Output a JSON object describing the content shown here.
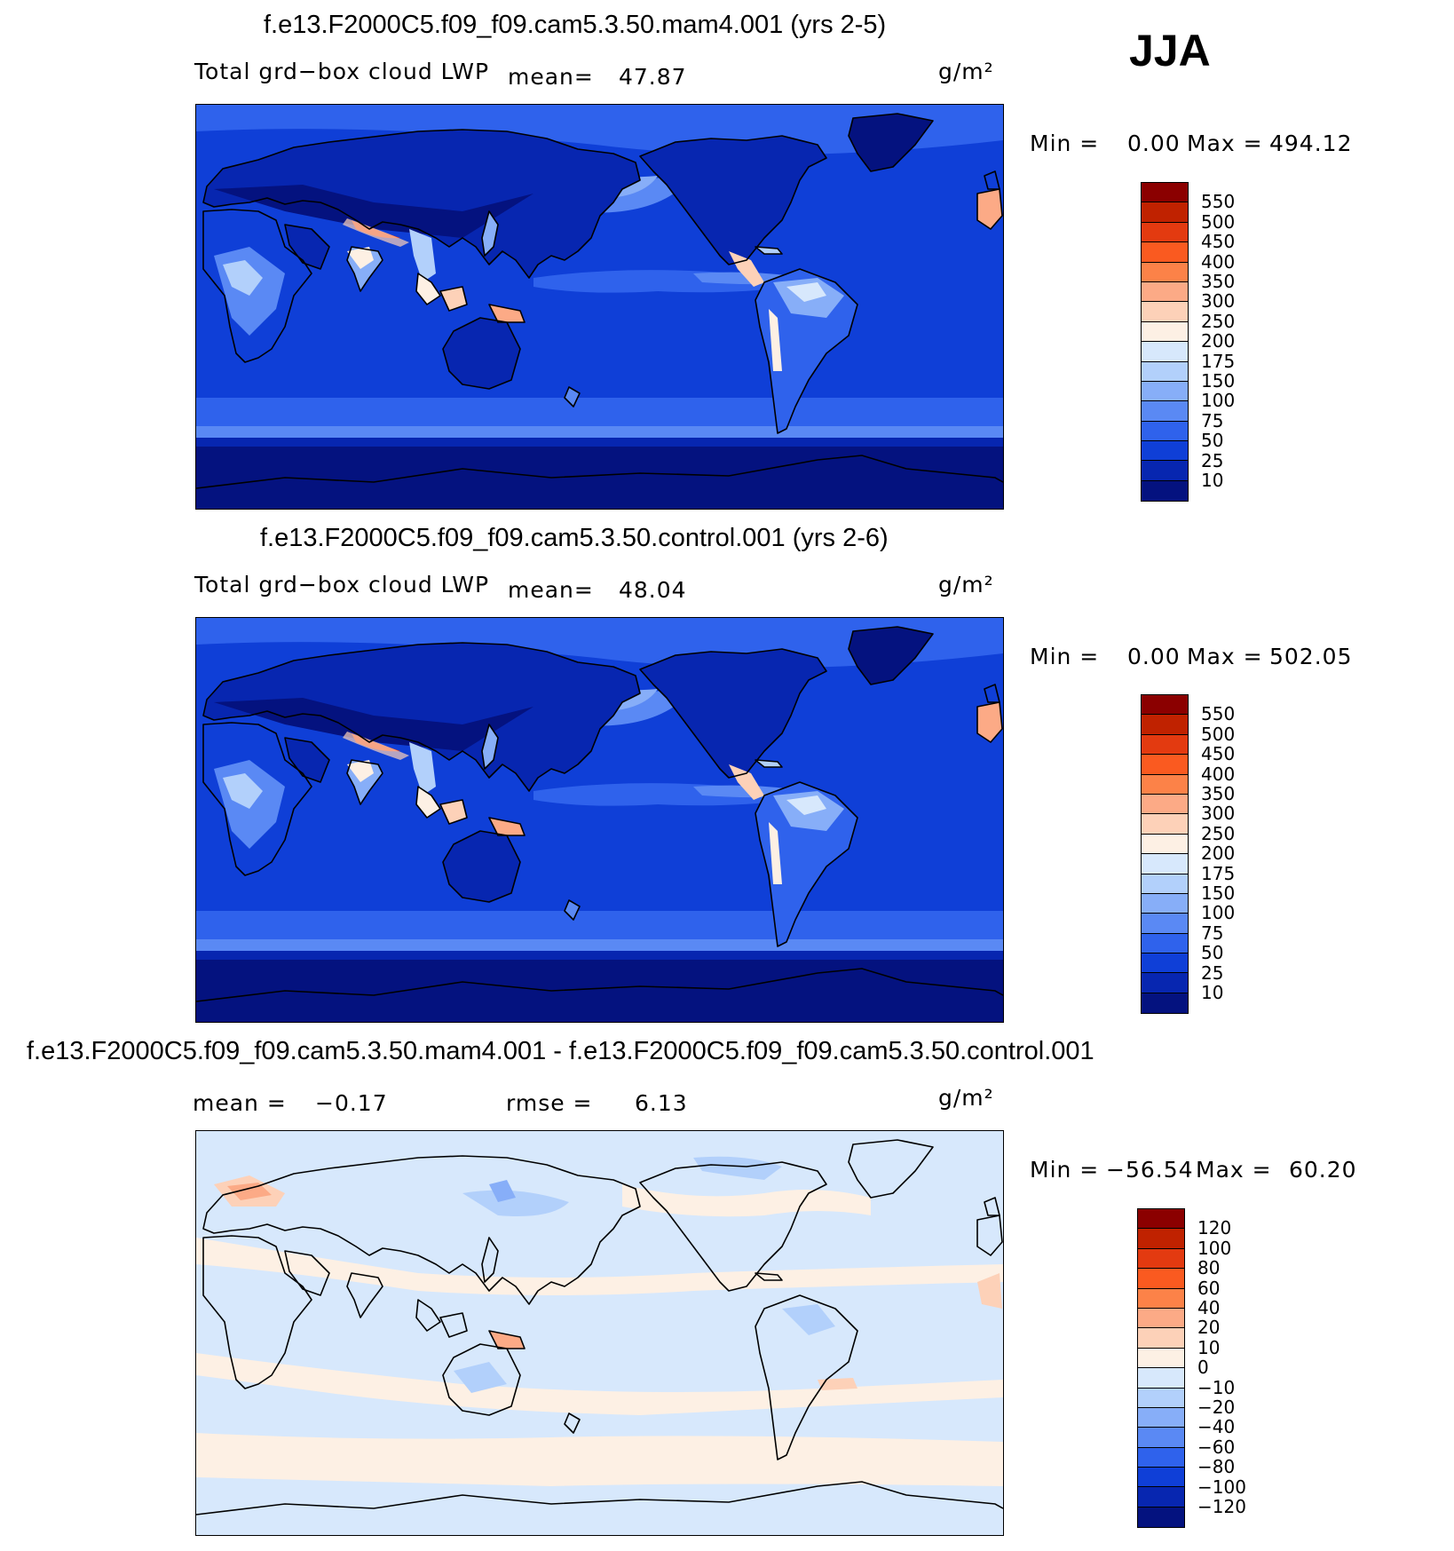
{
  "season": "JJA",
  "panels": [
    {
      "id": "p1",
      "title": "f.e13.F2000C5.f09_f09.cam5.3.50.mam4.001 (yrs 2-5)",
      "var_label": "Total grd−box cloud LWP",
      "mean_label": "mean=",
      "mean_value": "47.87",
      "units": "g/m²",
      "min_label": "Min =",
      "min_value": "0.00",
      "max_label": "Max =",
      "max_value": "494.12",
      "colorbar_labels": [
        "550",
        "500",
        "450",
        "400",
        "350",
        "300",
        "250",
        "200",
        "175",
        "150",
        "100",
        "75",
        "50",
        "25",
        "10"
      ],
      "colorbar_colors": [
        "#8b0000",
        "#c02200",
        "#e33a10",
        "#fa5a20",
        "#fc8248",
        "#fcaa86",
        "#fdd1b8",
        "#fdf0e4",
        "#d7e8fc",
        "#b2d0fb",
        "#87aef8",
        "#5a89f4",
        "#2f62ec",
        "#0f3fd7",
        "#0726b0",
        "#04127f"
      ],
      "field": "lwp"
    },
    {
      "id": "p2",
      "title": "f.e13.F2000C5.f09_f09.cam5.3.50.control.001 (yrs 2-6)",
      "var_label": "Total grd−box cloud LWP",
      "mean_label": "mean=",
      "mean_value": "48.04",
      "units": "g/m²",
      "min_label": "Min =",
      "min_value": "0.00",
      "max_label": "Max =",
      "max_value": "502.05",
      "colorbar_labels": [
        "550",
        "500",
        "450",
        "400",
        "350",
        "300",
        "250",
        "200",
        "175",
        "150",
        "100",
        "75",
        "50",
        "25",
        "10"
      ],
      "colorbar_colors": [
        "#8b0000",
        "#c02200",
        "#e33a10",
        "#fa5a20",
        "#fc8248",
        "#fcaa86",
        "#fdd1b8",
        "#fdf0e4",
        "#d7e8fc",
        "#b2d0fb",
        "#87aef8",
        "#5a89f4",
        "#2f62ec",
        "#0f3fd7",
        "#0726b0",
        "#04127f"
      ],
      "field": "lwp"
    },
    {
      "id": "p3",
      "title": "f.e13.F2000C5.f09_f09.cam5.3.50.mam4.001 - f.e13.F2000C5.f09_f09.cam5.3.50.control.001",
      "mean_label": "mean =",
      "mean_value": "−0.17",
      "rmse_label": "rmse =",
      "rmse_value": "6.13",
      "units": "g/m²",
      "min_label": "Min =",
      "min_value": "−56.54",
      "max_label": "Max =",
      "max_value": "60.20",
      "colorbar_labels": [
        "120",
        "100",
        "80",
        "60",
        "40",
        "20",
        "10",
        "0",
        "−10",
        "−20",
        "−40",
        "−60",
        "−80",
        "−100",
        "−120"
      ],
      "colorbar_colors": [
        "#8b0000",
        "#c02200",
        "#e33a10",
        "#fa5a20",
        "#fc8248",
        "#fcaa86",
        "#fdd1b8",
        "#fdf0e4",
        "#d7e8fc",
        "#b2d0fb",
        "#87aef8",
        "#5a89f4",
        "#2f62ec",
        "#0f3fd7",
        "#0726b0",
        "#04127f"
      ],
      "field": "diff"
    }
  ],
  "chart_data": [
    {
      "type": "heatmap",
      "title": "f.e13.F2000C5.f09_f09.cam5.3.50.mam4.001 (yrs 2-5)",
      "subtitle": "Total grd−box cloud LWP",
      "units": "g/m²",
      "mean": 47.87,
      "min": 0.0,
      "max": 494.12,
      "contour_levels": [
        10,
        25,
        50,
        75,
        100,
        150,
        175,
        200,
        250,
        300,
        350,
        400,
        450,
        500,
        550
      ],
      "projection": "cylindrical equidistant, centered on Pacific",
      "season": "JJA"
    },
    {
      "type": "heatmap",
      "title": "f.e13.F2000C5.f09_f09.cam5.3.50.control.001 (yrs 2-6)",
      "subtitle": "Total grd−box cloud LWP",
      "units": "g/m²",
      "mean": 48.04,
      "min": 0.0,
      "max": 502.05,
      "contour_levels": [
        10,
        25,
        50,
        75,
        100,
        150,
        175,
        200,
        250,
        300,
        350,
        400,
        450,
        500,
        550
      ],
      "projection": "cylindrical equidistant, centered on Pacific",
      "season": "JJA"
    },
    {
      "type": "heatmap",
      "title": "f.e13.F2000C5.f09_f09.cam5.3.50.mam4.001 - f.e13.F2000C5.f09_f09.cam5.3.50.control.001",
      "units": "g/m²",
      "mean": -0.17,
      "rmse": 6.13,
      "min": -56.54,
      "max": 60.2,
      "contour_levels": [
        -120,
        -100,
        -80,
        -60,
        -40,
        -20,
        -10,
        0,
        10,
        20,
        40,
        60,
        80,
        100,
        120
      ],
      "projection": "cylindrical equidistant, centered on Pacific",
      "season": "JJA"
    }
  ]
}
